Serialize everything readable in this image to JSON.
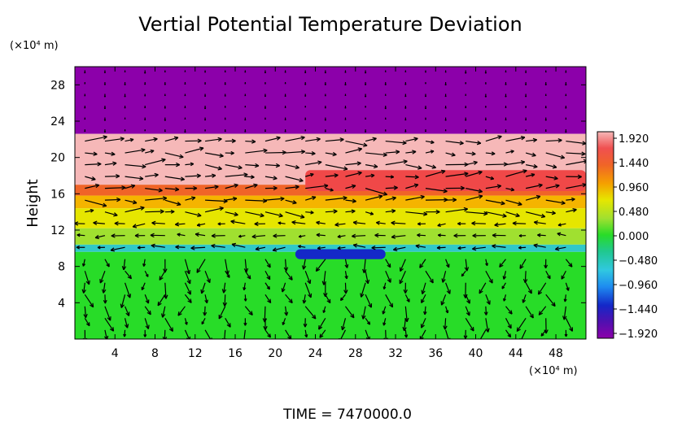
{
  "chart_data": {
    "type": "heatmap",
    "title": "Vertial Potential Temperature Deviation",
    "ylabel": "Height",
    "y_unit_label": "(×10⁴ m)",
    "x_unit_label": "(×10⁴ m)",
    "x_ticks": [
      4,
      8,
      12,
      16,
      20,
      24,
      28,
      32,
      36,
      40,
      44,
      48
    ],
    "y_ticks": [
      4,
      8,
      12,
      16,
      20,
      24,
      28
    ],
    "xlim": [
      0,
      51
    ],
    "ylim": [
      0,
      30
    ],
    "colorbar": {
      "ticks": [
        "1.920",
        "1.440",
        "0.960",
        "0.480",
        "0.000",
        "−0.480",
        "−0.960",
        "−1.440",
        "−1.920"
      ],
      "range": [
        -1.92,
        1.92
      ]
    },
    "bands": [
      {
        "y0": 22.6,
        "y1": 30.0,
        "value": -1.92,
        "color": "#8c00aa"
      },
      {
        "y0": 17.0,
        "y1": 22.6,
        "value": 1.92,
        "color": "#f6b8b8"
      },
      {
        "y0": 15.8,
        "y1": 17.0,
        "value": 1.44,
        "color": "#f06428"
      },
      {
        "y0": 14.4,
        "y1": 15.8,
        "value": 1.05,
        "color": "#f5b400"
      },
      {
        "y0": 12.2,
        "y1": 14.4,
        "value": 0.96,
        "color": "#e6e600"
      },
      {
        "y0": 10.4,
        "y1": 12.2,
        "value": 0.48,
        "color": "#a0e030"
      },
      {
        "y0": 9.6,
        "y1": 10.4,
        "value": -0.48,
        "color": "#30c8c8"
      },
      {
        "y0": 0.0,
        "y1": 9.6,
        "value": 0.0,
        "color": "#28dc28"
      }
    ],
    "features": [
      {
        "type": "warm-layer",
        "x0": 23,
        "x1": 51,
        "y0": 16.3,
        "y1": 18.6,
        "value": 1.92,
        "color": "#f04848"
      },
      {
        "type": "cold-spot",
        "x0": 22,
        "x1": 31,
        "y0": 8.8,
        "y1": 9.9,
        "value": -1.44,
        "color": "#1428c8"
      }
    ],
    "time_label": "TIME = 7470000.0"
  }
}
